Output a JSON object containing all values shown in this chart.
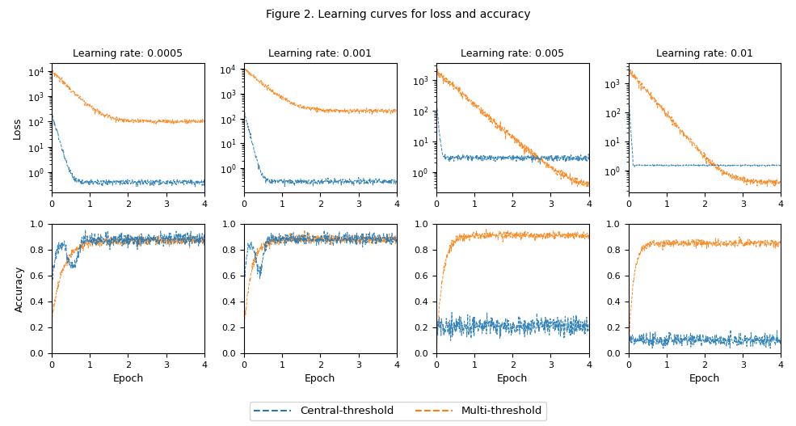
{
  "title": "Figure 2. Learning curves for loss and accuracy",
  "lr_labels": [
    "Learning rate: 0.0005",
    "Learning rate: 0.001",
    "Learning rate: 0.005",
    "Learning rate: 0.01"
  ],
  "n_points": 500,
  "epoch_max": 4,
  "blue_color": "#1f77b4",
  "orange_color": "#ff7f0e",
  "legend_labels": [
    "Central-threshold",
    "Multi-threshold"
  ],
  "xlabel": "Epoch",
  "ylabel_loss": "Loss",
  "ylabel_acc": "Accuracy",
  "title_fontsize": 10,
  "label_fontsize": 9,
  "tick_fontsize": 8,
  "col_title_fontsize": 9,
  "linewidth": 0.7,
  "alpha": 0.9
}
